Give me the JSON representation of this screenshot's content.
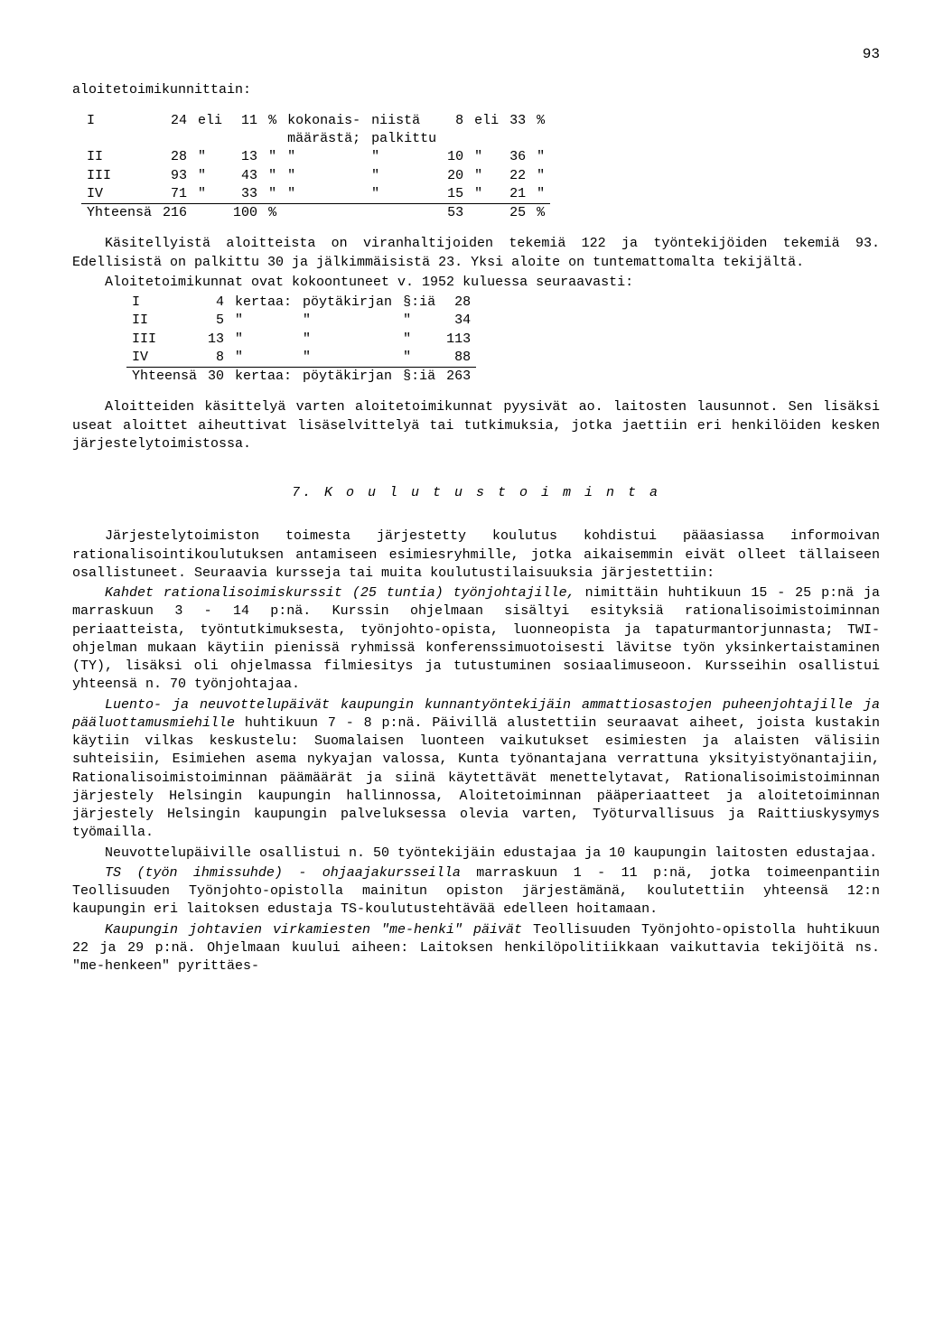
{
  "pageNumber": "93",
  "heading1": "aloitetoimikunnittain:",
  "table1": {
    "rows": [
      {
        "c1": "I",
        "c2": "24",
        "c3": "eli",
        "c4": "11",
        "c5": "%",
        "c6": "kokonais-",
        "c7": "niistä",
        "c8": "8",
        "c9": "eli",
        "c10": "33",
        "c11": "%"
      },
      {
        "c1": "",
        "c2": "",
        "c3": "",
        "c4": "",
        "c5": "",
        "c6": "määrästä;",
        "c7": "palkittu",
        "c8": "",
        "c9": "",
        "c10": "",
        "c11": ""
      },
      {
        "c1": "II",
        "c2": "28",
        "c3": "\"",
        "c4": "13",
        "c5": "\"",
        "c6": "\"",
        "c7": "\"",
        "c8": "10",
        "c9": "\"",
        "c10": "36",
        "c11": "\""
      },
      {
        "c1": "III",
        "c2": "93",
        "c3": "\"",
        "c4": "43",
        "c5": "\"",
        "c6": "\"",
        "c7": "\"",
        "c8": "20",
        "c9": "\"",
        "c10": "22",
        "c11": "\""
      },
      {
        "c1": "IV",
        "c2": "71",
        "c3": "\"",
        "c4": "33",
        "c5": "\"",
        "c6": "\"",
        "c7": "\"",
        "c8": "15",
        "c9": "\"",
        "c10": "21",
        "c11": "\""
      }
    ],
    "sum": {
      "c1": "Yhteensä",
      "c2": "216",
      "c3": "",
      "c4": "100",
      "c5": "%",
      "c6": "",
      "c7": "",
      "c8": "53",
      "c9": "",
      "c10": "25",
      "c11": "%"
    }
  },
  "p1": "Käsitellyistä aloitteista on viranhaltijoiden tekemiä 122 ja työntekijöiden tekemiä 93. Edellisistä on palkittu 30 ja jälkimmäisistä 23. Yksi aloite on tuntemattomalta tekijältä.",
  "p2": "Aloitetoimikunnat ovat kokoontuneet v. 1952 kuluessa seuraavasti:",
  "table2": {
    "rows": [
      {
        "c1": "I",
        "c2": "4",
        "c3": "kertaa:",
        "c4": "pöytäkirjan",
        "c5": "§:iä",
        "c6": "28"
      },
      {
        "c1": "II",
        "c2": "5",
        "c3": "\"",
        "c4": "\"",
        "c5": "\"",
        "c6": "34"
      },
      {
        "c1": "III",
        "c2": "13",
        "c3": "\"",
        "c4": "\"",
        "c5": "\"",
        "c6": "113"
      },
      {
        "c1": "IV",
        "c2": "8",
        "c3": "\"",
        "c4": "\"",
        "c5": "\"",
        "c6": "88"
      }
    ],
    "sum": {
      "c1": "Yhteensä",
      "c2": "30",
      "c3": "kertaa:",
      "c4": "pöytäkirjan",
      "c5": "§:iä",
      "c6": "263"
    }
  },
  "p3": "Aloitteiden käsittelyä varten aloitetoimikunnat pyysivät ao. laitosten lausunnot. Sen lisäksi useat aloittet aiheuttivat lisäselvittelyä tai tutkimuksia, jotka jaettiin eri henkilöiden kesken järjestelytoimistossa.",
  "sectionTitle": "7.  K o u l u t u s t o i m i n t a",
  "p4": "Järjestelytoimiston toimesta järjestetty koulutus kohdistui pääasiassa informoivan rationalisointikoulutuksen antamiseen esimiesryhmille, jotka aikaisemmin eivät olleet tällaiseen osallistuneet. Seuraavia kursseja tai muita koulutustilaisuuksia järjestettiin:",
  "p5a": "Kahdet rationalisoimiskurssit (25 tuntia) työnjohtajille,",
  "p5b": " nimittäin huhtikuun 15 - 25 p:nä ja marraskuun 3 - 14 p:nä. Kurssin ohjelmaan sisältyi esityksiä rationalisoimistoiminnan periaatteista, työntutkimuksesta, työnjohto-opista, luonneopista ja tapaturmantorjunnasta; TWI-ohjelman mukaan käytiin pienissä ryhmissä konferenssimuotoisesti lävitse työn yksinkertaistaminen (TY), lisäksi oli ohjelmassa filmiesitys ja tutustuminen sosiaalimuseoon. Kursseihin osallistui yhteensä n. 70 työnjohtajaa.",
  "p6a": "Luento- ja neuvottelupäivät kaupungin kunnantyöntekijäin ammattiosastojen puheenjohtajille ja pääluottamusmiehille",
  "p6b": " huhtikuun 7 - 8 p:nä. Päivillä alustettiin seuraavat aiheet, joista kustakin käytiin vilkas keskustelu: Suomalaisen luonteen vaikutukset esimiesten ja alaisten välisiin suhteisiin, Esimiehen asema nykyajan valossa, Kunta työnantajana verrattuna yksityistyönantajiin, Rationalisoimistoiminnan päämäärät ja siinä käytettävät menettelytavat, Rationalisoimistoiminnan järjestely Helsingin kaupungin hallinnossa, Aloitetoiminnan pääperiaatteet ja aloitetoiminnan järjestely Helsingin kaupungin palveluksessa olevia varten, Työturvallisuus ja Raittiuskysymys työmailla.",
  "p7": "Neuvottelupäiville osallistui n. 50 työntekijäin edustajaa ja 10 kaupungin laitosten edustajaa.",
  "p8a": "TS (työn ihmissuhde) - ohjaajakursseilla",
  "p8b": " marraskuun 1 - 11 p:nä, jotka toimeenpantiin Teollisuuden Työnjohto-opistolla mainitun opiston järjestämänä, koulutettiin yhteensä 12:n kaupungin eri laitoksen edustaja TS-koulutustehtävää edelleen hoitamaan.",
  "p9a": "Kaupungin johtavien virkamiesten \"me-henki\" päivät",
  "p9b": " Teollisuuden Työnjohto-opistolla huhtikuun 22 ja 29 p:nä. Ohjelmaan kuului aiheen: Laitoksen henkilöpolitiikkaan vaikuttavia tekijöitä ns. \"me-henkeen\" pyrittäes-"
}
